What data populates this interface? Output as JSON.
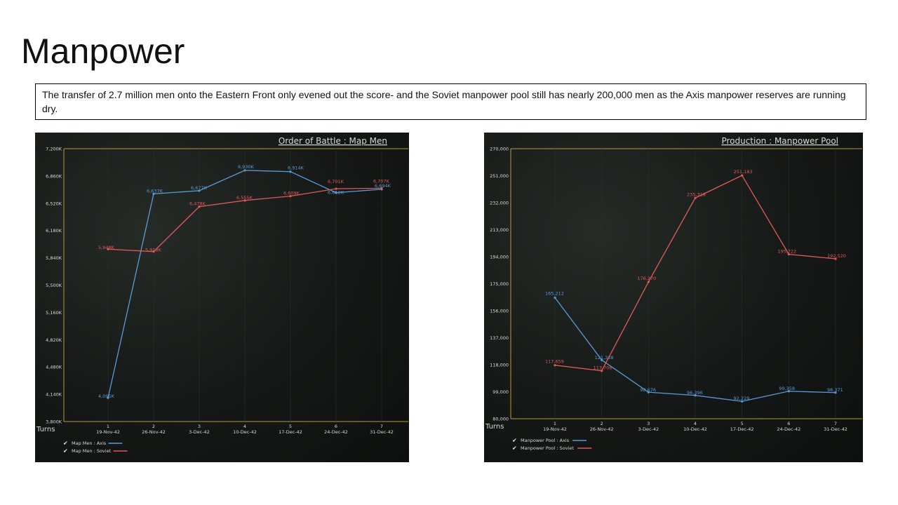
{
  "slide": {
    "title": "Manpower",
    "summary": "The transfer of 2.7 million men onto the Eastern Front only evened out the score- and the Soviet manpower pool still has nearly 200,000 men as the Axis manpower reserves are running dry."
  },
  "colors": {
    "axis": "#5b9bd5",
    "soviet": "#e05a5a",
    "frame": "#b59a3a",
    "text": "#d9d9d9"
  },
  "chart_data": [
    {
      "type": "line",
      "title": "Order of Battle : Map Men",
      "xlabel": "Turns",
      "ylim": [
        3800,
        7200
      ],
      "y_ticks": [
        "7,200K",
        "6,860K",
        "6,520K",
        "6,180K",
        "5,840K",
        "5,500K",
        "5,160K",
        "4,820K",
        "4,480K",
        "4,140K",
        "3,800K"
      ],
      "x": [
        1,
        2,
        3,
        4,
        5,
        6,
        7
      ],
      "categories": [
        "19-Nov-42",
        "26-Nov-42",
        "3-Dec-42",
        "10-Dec-42",
        "17-Dec-42",
        "24-Dec-42",
        "31-Dec-42"
      ],
      "series": [
        {
          "name": "Map Men : Axis",
          "color": "#5b9bd5",
          "values": [
            4095,
            6637,
            6677,
            6930,
            6914,
            6652,
            6694
          ],
          "labels": [
            "4,095K",
            "6,637K",
            "6,677K",
            "6,930K",
            "6,914K",
            "6,652K",
            "6,694K"
          ]
        },
        {
          "name": "Map Men : Soviet",
          "color": "#e05a5a",
          "values": [
            5948,
            5918,
            6478,
            6555,
            6609,
            6701,
            6707
          ],
          "labels": [
            "5,948K",
            "5,918K",
            "6,478K",
            "6,555K",
            "6,609K",
            "6,701K",
            "6,707K"
          ]
        }
      ],
      "grid": false,
      "legend": "bottom-left"
    },
    {
      "type": "line",
      "title": "Production : Manpower Pool",
      "xlabel": "Turns",
      "ylim": [
        80000,
        270000
      ],
      "y_ticks": [
        "270,000",
        "251,000",
        "232,000",
        "213,000",
        "194,000",
        "175,000",
        "156,000",
        "137,000",
        "118,000",
        "99,000",
        "80,000"
      ],
      "x": [
        1,
        2,
        3,
        4,
        5,
        6,
        7
      ],
      "categories": [
        "19-Nov-42",
        "26-Nov-42",
        "3-Dec-42",
        "10-Dec-42",
        "17-Dec-42",
        "24-Dec-42",
        "31-Dec-42"
      ],
      "series": [
        {
          "name": "Manpower Pool : Axis",
          "color": "#5b9bd5",
          "values": [
            165212,
            121338,
            98676,
            96396,
            92229,
            99358,
            98371
          ],
          "labels": [
            "165,212",
            "121,338",
            "98,676",
            "96,396",
            "92,229",
            "99,358",
            "98,371"
          ]
        },
        {
          "name": "Manpower Pool : Soviet",
          "color": "#e05a5a",
          "values": [
            117659,
            113706,
            176270,
            235318,
            251183,
            195722,
            192520
          ],
          "labels": [
            "117,659",
            "113,706",
            "176,270",
            "235,318",
            "251,183",
            "195,722",
            "192,520"
          ]
        }
      ],
      "grid": false,
      "legend": "bottom-left"
    }
  ]
}
